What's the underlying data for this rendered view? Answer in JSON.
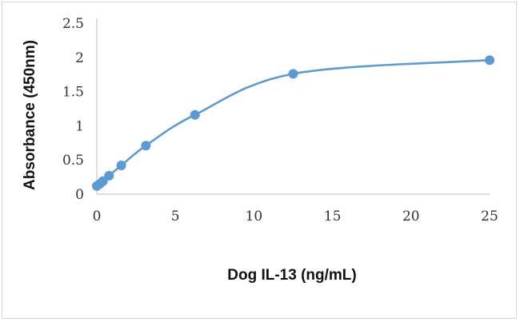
{
  "chart_data": {
    "type": "line",
    "xlabel": "Dog IL-13 (ng/mL)",
    "ylabel": "Absorbance (450nm)",
    "xlim": [
      0,
      25
    ],
    "ylim": [
      0,
      2.5
    ],
    "x_ticks": [
      "0",
      "5",
      "10",
      "15",
      "20",
      "25"
    ],
    "y_ticks": [
      "0",
      "0.5",
      "1",
      "1.5",
      "2",
      "2.5"
    ],
    "grid": false,
    "series": [
      {
        "x": [
          0,
          0.195,
          0.39,
          0.78,
          1.56,
          3.125,
          6.25,
          12.5,
          25
        ],
        "y": [
          0.12,
          0.15,
          0.19,
          0.27,
          0.42,
          0.71,
          1.16,
          1.76,
          1.96
        ],
        "smooth": true
      }
    ],
    "color": "#5b9bd5"
  }
}
